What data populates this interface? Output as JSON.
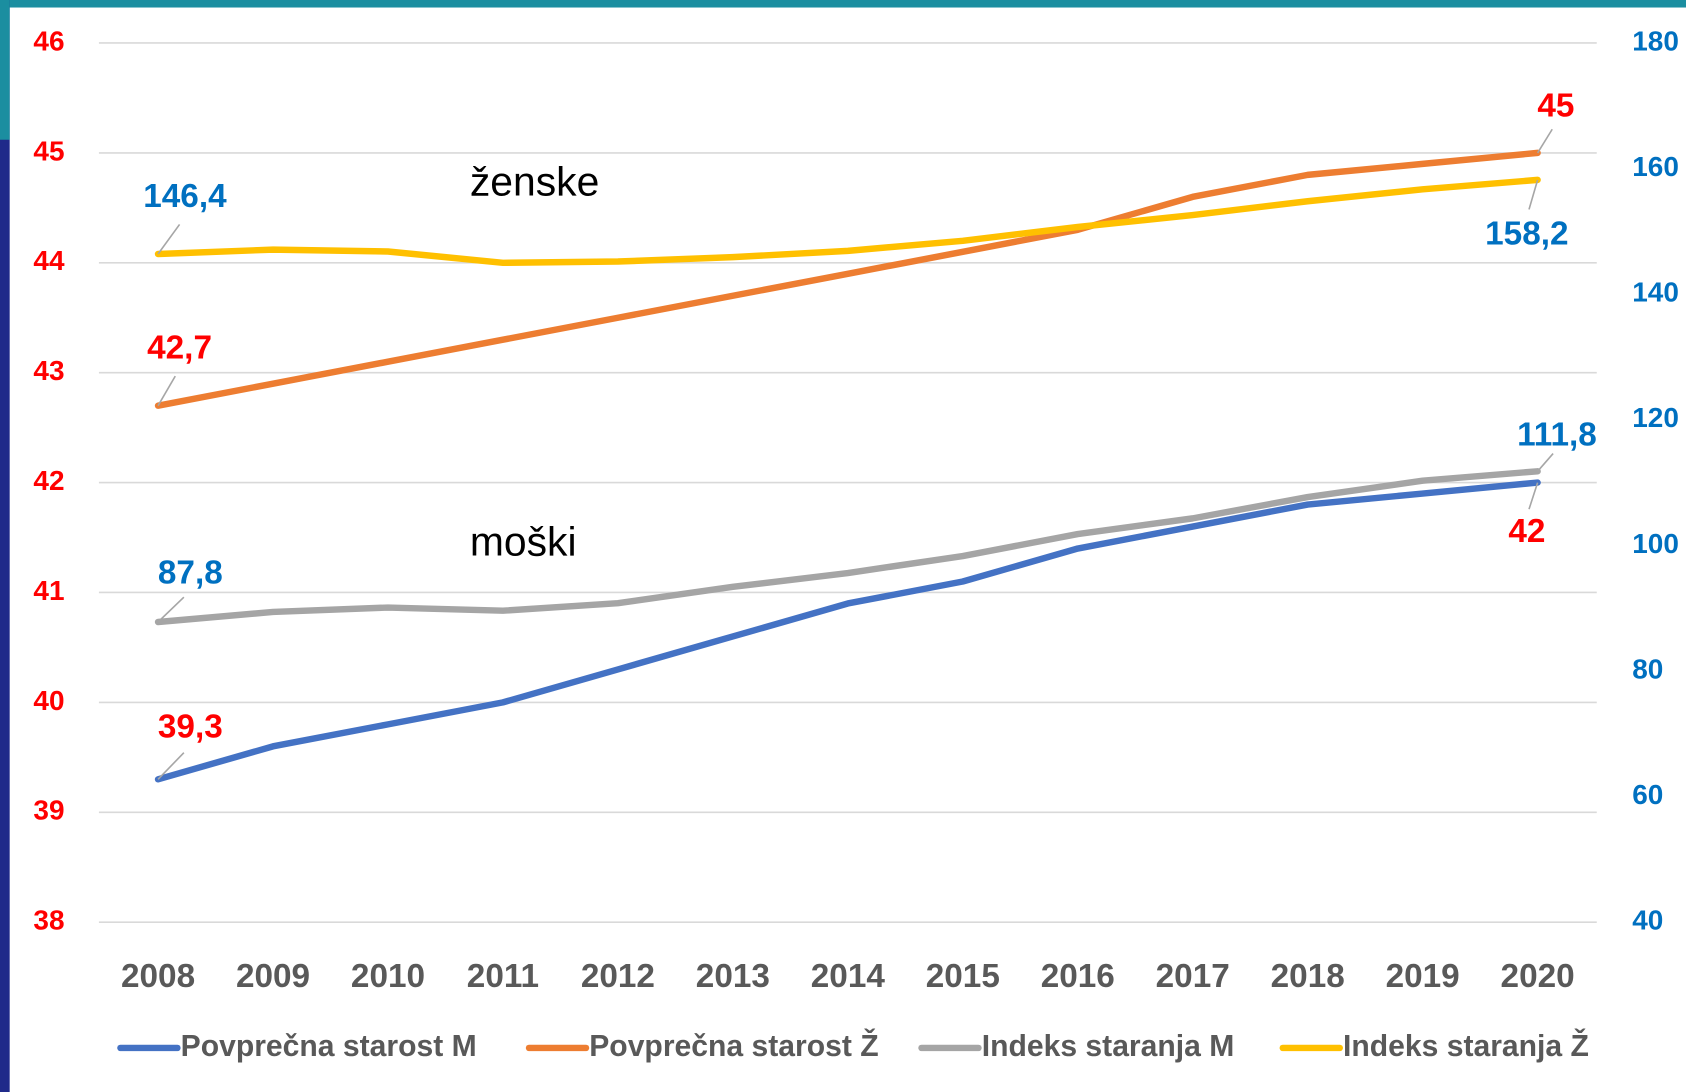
{
  "chart_data": {
    "type": "line",
    "categories": [
      "2008",
      "2009",
      "2010",
      "2011",
      "2012",
      "2013",
      "2014",
      "2015",
      "2016",
      "2017",
      "2018",
      "2019",
      "2020"
    ],
    "series": [
      {
        "name": "Povprečna starost M",
        "color": "#4472c4",
        "axis": "y",
        "values": [
          39.3,
          39.6,
          39.8,
          40.0,
          40.3,
          40.6,
          40.9,
          41.1,
          41.4,
          41.6,
          41.8,
          41.9,
          42.0
        ],
        "value_labels": [
          "39,3",
          null,
          null,
          null,
          null,
          null,
          null,
          null,
          null,
          null,
          null,
          null,
          "42"
        ]
      },
      {
        "name": "Povprečna starost Ž",
        "color": "#ed7d31",
        "axis": "y",
        "values": [
          42.7,
          42.9,
          43.1,
          43.3,
          43.5,
          43.7,
          43.9,
          44.1,
          44.3,
          44.6,
          44.8,
          44.9,
          45.0
        ],
        "value_labels": [
          "42,7",
          null,
          null,
          null,
          null,
          null,
          null,
          null,
          null,
          null,
          null,
          null,
          "45"
        ]
      },
      {
        "name": "Indeks staranja M",
        "color": "#a5a5a5",
        "axis": "y2",
        "values": [
          87.8,
          89.4,
          90.1,
          89.6,
          90.8,
          93.4,
          95.6,
          98.3,
          101.8,
          104.3,
          107.7,
          110.3,
          111.8
        ],
        "value_labels": [
          "87,8",
          null,
          null,
          null,
          null,
          null,
          null,
          null,
          null,
          null,
          null,
          null,
          "111,8"
        ]
      },
      {
        "name": "Indeks staranja Ž",
        "color": "#ffc000",
        "axis": "y2",
        "values": [
          146.4,
          147.1,
          146.8,
          145.0,
          145.2,
          145.9,
          146.9,
          148.5,
          150.7,
          152.6,
          154.8,
          156.7,
          158.2
        ],
        "value_labels": [
          "146,4",
          null,
          null,
          null,
          null,
          null,
          null,
          null,
          null,
          null,
          null,
          null,
          "158,2"
        ]
      }
    ],
    "ylim": [
      38,
      46
    ],
    "yticks": [
      38,
      39,
      40,
      41,
      42,
      43,
      44,
      45,
      46
    ],
    "y_tick_color": "#ff0000",
    "y2lim": [
      40,
      180
    ],
    "y2ticks": [
      40,
      60,
      80,
      100,
      120,
      140,
      160,
      180
    ],
    "y2_tick_color": "#0070c0",
    "grid": true,
    "legend": "bottom",
    "annotations": [
      "ženske",
      "moški"
    ]
  }
}
